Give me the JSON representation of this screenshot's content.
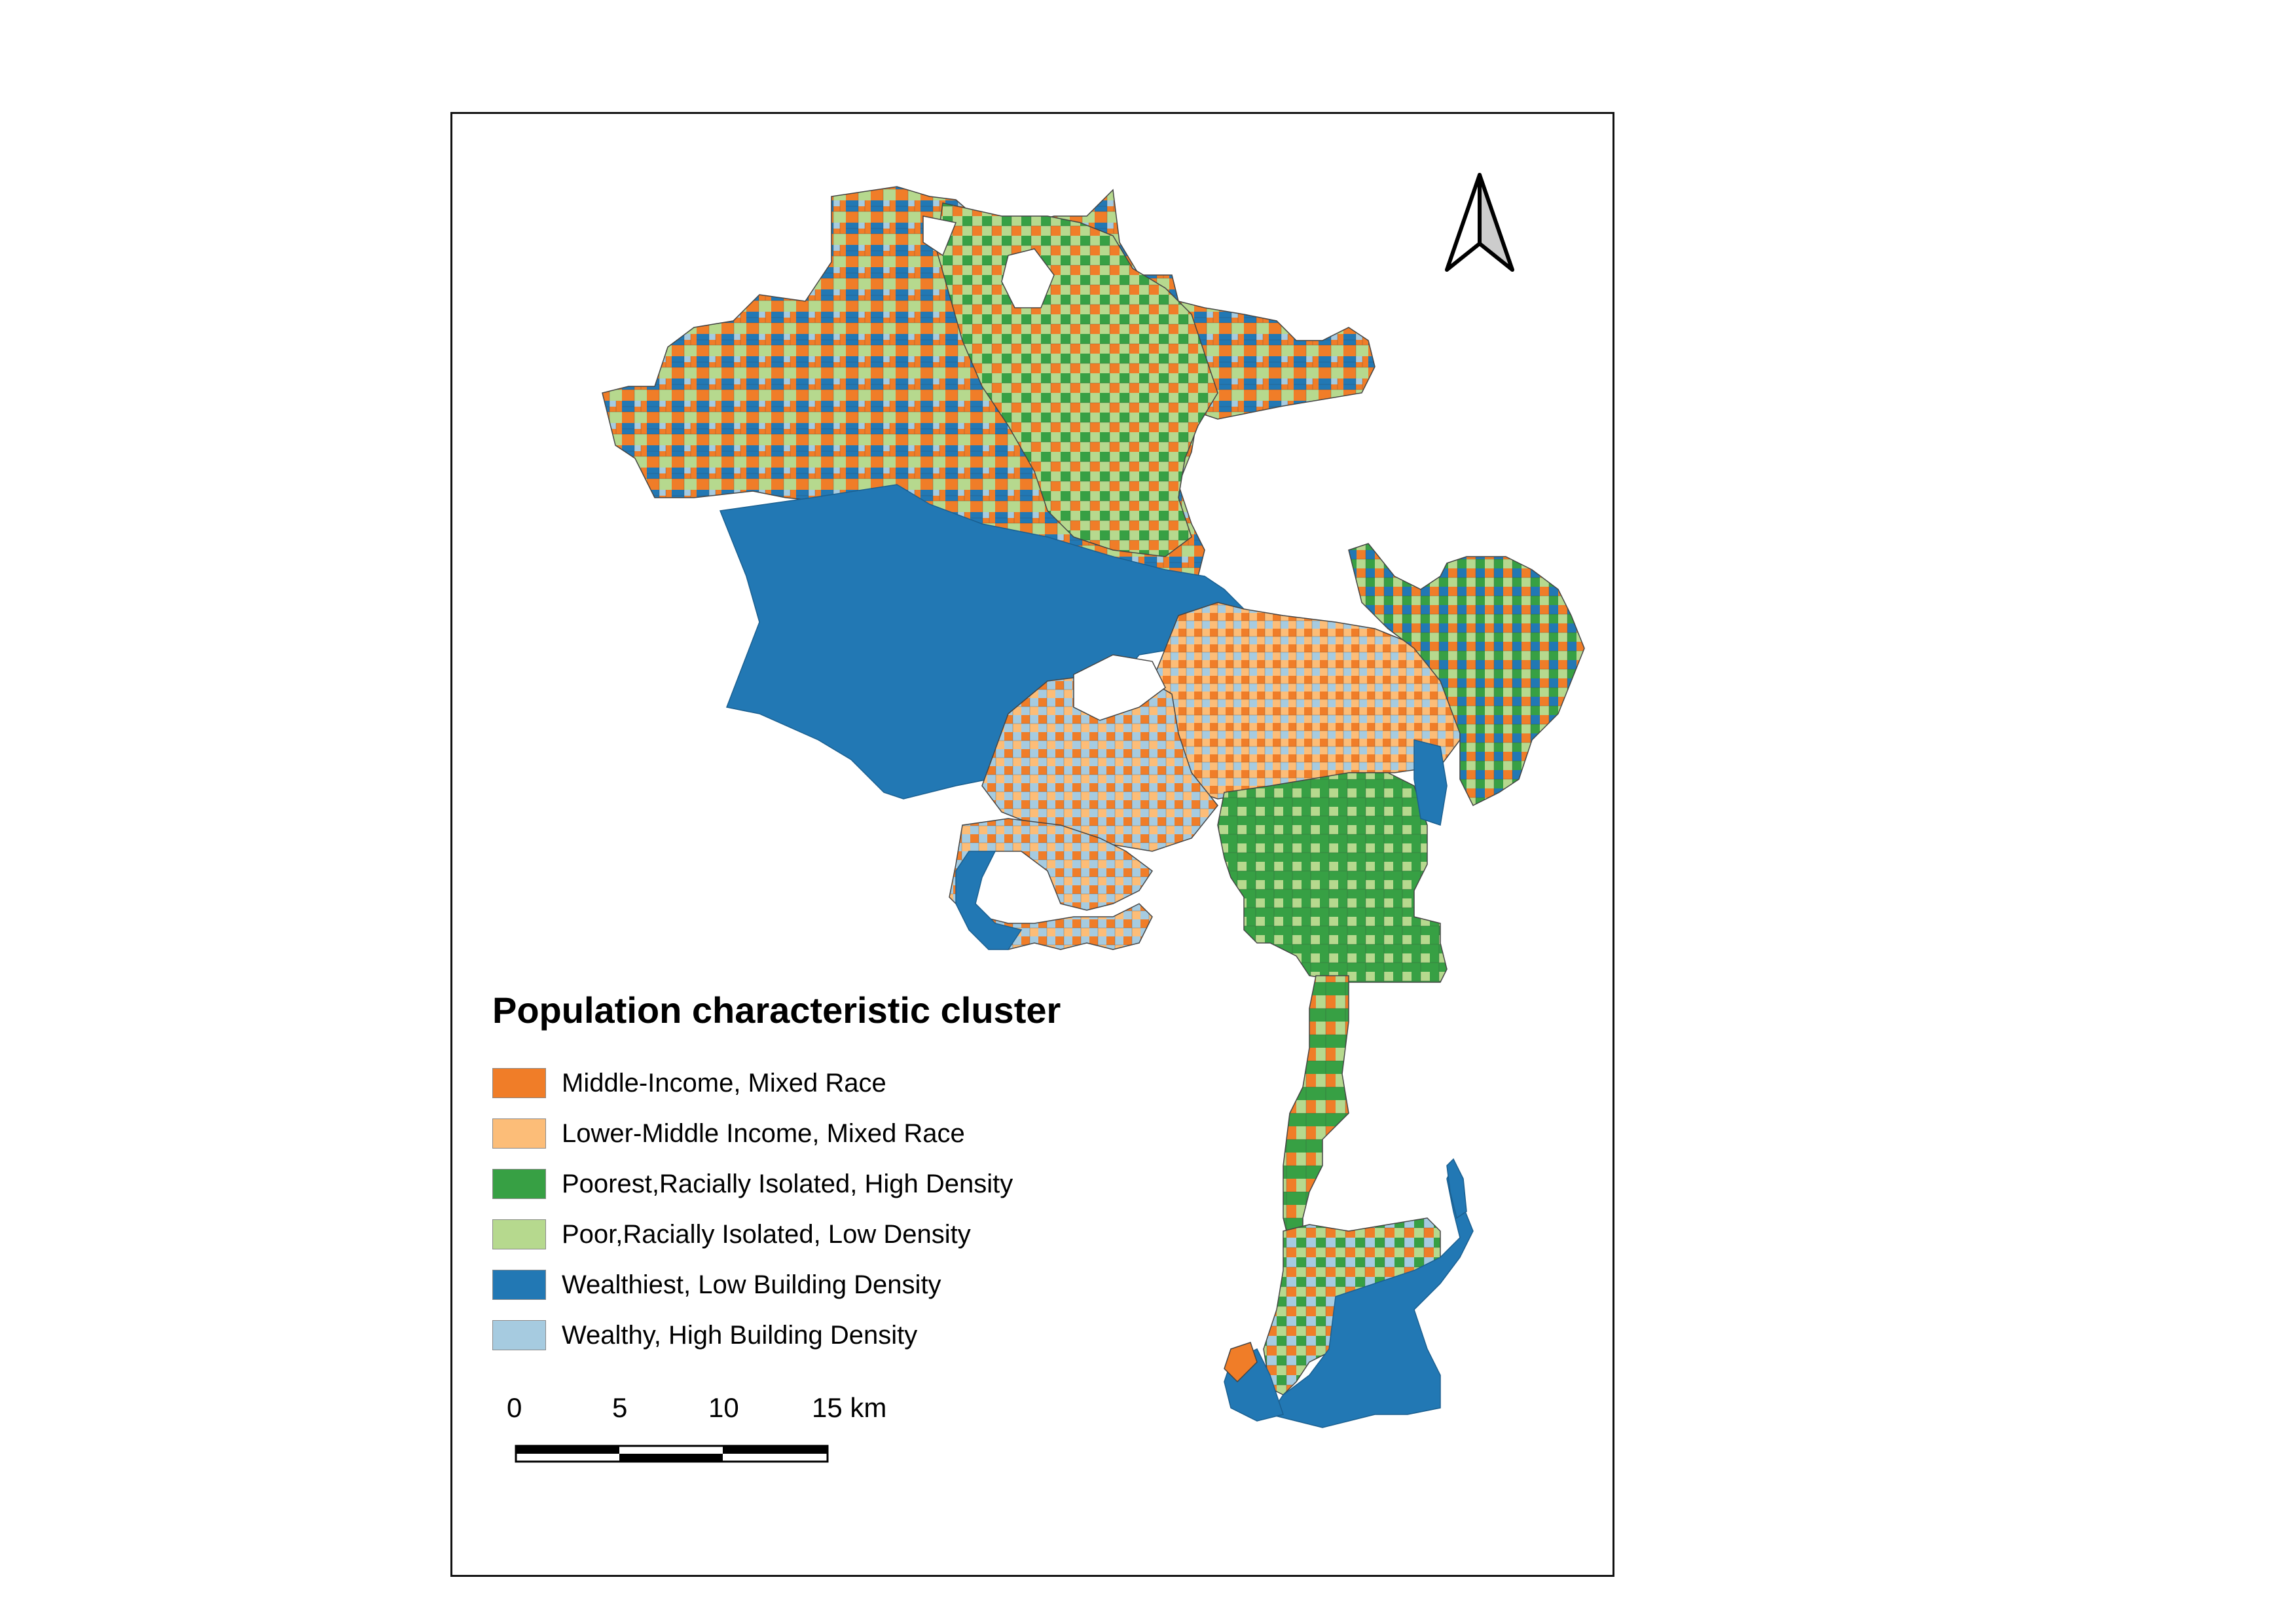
{
  "legend": {
    "title": "Population characteristic cluster",
    "items": [
      {
        "label": "Middle-Income, Mixed Race",
        "color": "#f07d28"
      },
      {
        "label": "Lower-Middle Income, Mixed Race",
        "color": "#fcbd78"
      },
      {
        "label": "Poorest,Racially Isolated, High Density",
        "color": "#37a044"
      },
      {
        "label": "Poor,Racially Isolated, Low Density",
        "color": "#b6d98e"
      },
      {
        "label": "Wealthiest, Low Building Density",
        "color": "#2278b4"
      },
      {
        "label": "Wealthy, High Building Density",
        "color": "#a6cbe0"
      }
    ]
  },
  "scale_bar": {
    "labels": [
      "0",
      "5",
      "10",
      "15 km"
    ]
  },
  "north_arrow": {
    "icon": "north-arrow-icon"
  }
}
